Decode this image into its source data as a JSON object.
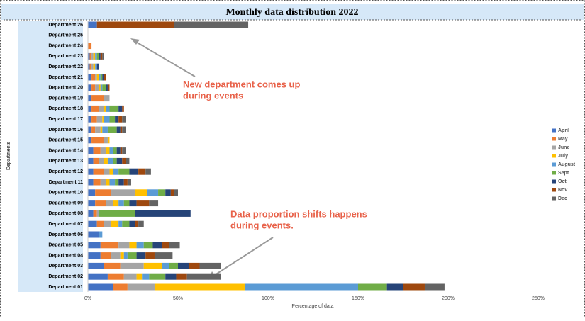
{
  "chart_data": {
    "type": "stacked-bar-horizontal",
    "title": "Monthly data distribution 2022",
    "x_label": "Percentage of data",
    "y_label": "Departments",
    "categories": [
      "Department 01",
      "Department 02",
      "Department 03",
      "Department 04",
      "Department 05",
      "Department 06",
      "Department 07",
      "Department 08",
      "Department 09",
      "Department 10",
      "Department 11",
      "Department 12",
      "Department 13",
      "Department 14",
      "Department 15",
      "Department 16",
      "Department 17",
      "Department 18",
      "Department 19",
      "Department 20",
      "Department 21",
      "Department 22",
      "Department 23",
      "Department 24",
      "Department 25",
      "Department 26"
    ],
    "series": [
      {
        "name": "April",
        "color": "#4472c4",
        "values": [
          14,
          11,
          9,
          7,
          7,
          6,
          5,
          3,
          4,
          4,
          3,
          3,
          3,
          3,
          2,
          2,
          2,
          2,
          2,
          2,
          2,
          1,
          1,
          0,
          0,
          5
        ]
      },
      {
        "name": "May",
        "color": "#ed7d31",
        "values": [
          8,
          9,
          9,
          6,
          10,
          0,
          4,
          2,
          6,
          9,
          4,
          6,
          3,
          4,
          7,
          2,
          3,
          4,
          7,
          2,
          2,
          1,
          1,
          2,
          0,
          0
        ]
      },
      {
        "name": "June",
        "color": "#a5a5a5",
        "values": [
          15,
          7,
          13,
          5,
          6,
          0,
          4,
          1,
          4,
          13,
          3,
          3,
          3,
          3,
          2,
          3,
          3,
          3,
          3,
          2,
          1,
          1,
          1,
          0,
          0,
          0
        ]
      },
      {
        "name": "July",
        "color": "#ffc000",
        "values": [
          50,
          3,
          10,
          2,
          4,
          0,
          4,
          0,
          3,
          7,
          2,
          2,
          2,
          2,
          1,
          1,
          1,
          1,
          0,
          1,
          1,
          1,
          1,
          0,
          0,
          0
        ]
      },
      {
        "name": "August",
        "color": "#5b9bd5",
        "values": [
          63,
          4,
          4,
          2,
          4,
          2,
          2,
          0,
          3,
          6,
          3,
          3,
          3,
          2,
          0,
          3,
          3,
          2,
          0,
          1,
          1,
          1,
          1,
          0,
          0,
          0
        ]
      },
      {
        "name": "Sept",
        "color": "#70ad47",
        "values": [
          16,
          9,
          5,
          5,
          5,
          0,
          4,
          20,
          3,
          4,
          2,
          6,
          2,
          2,
          0,
          5,
          3,
          5,
          0,
          2,
          1,
          0,
          1,
          0,
          0,
          0
        ]
      },
      {
        "name": "Oct",
        "color": "#264478",
        "values": [
          9,
          6,
          6,
          5,
          5,
          0,
          3,
          31,
          4,
          3,
          3,
          5,
          3,
          2,
          0,
          2,
          2,
          2,
          0,
          1,
          1,
          1,
          1,
          0,
          0,
          0
        ]
      },
      {
        "name": "Nov",
        "color": "#9e480e",
        "values": [
          12,
          6,
          6,
          5,
          4,
          0,
          2,
          0,
          7,
          2,
          2,
          4,
          2,
          1,
          0,
          1,
          2,
          1,
          0,
          1,
          1,
          0,
          1,
          0,
          0,
          43
        ]
      },
      {
        "name": "Dec",
        "color": "#636363",
        "values": [
          11,
          19,
          12,
          10,
          6,
          0,
          3,
          0,
          5,
          2,
          2,
          3,
          2,
          2,
          0,
          2,
          2,
          0,
          0,
          0,
          0,
          0,
          1,
          0,
          0,
          41
        ]
      }
    ],
    "xlim": [
      0,
      250
    ],
    "xticks": [
      {
        "value": 0,
        "label": "0%"
      },
      {
        "value": 50,
        "label": "50%"
      },
      {
        "value": 100,
        "label": "100%"
      },
      {
        "value": 150,
        "label": "150%"
      },
      {
        "value": 200,
        "label": "200%"
      },
      {
        "value": 250,
        "label": "250%"
      }
    ],
    "legend": "right",
    "annotations": [
      {
        "lines": [
          "New department comes up",
          "during events"
        ]
      },
      {
        "lines": [
          "Data proportion shifts happens",
          "during events."
        ]
      }
    ]
  }
}
